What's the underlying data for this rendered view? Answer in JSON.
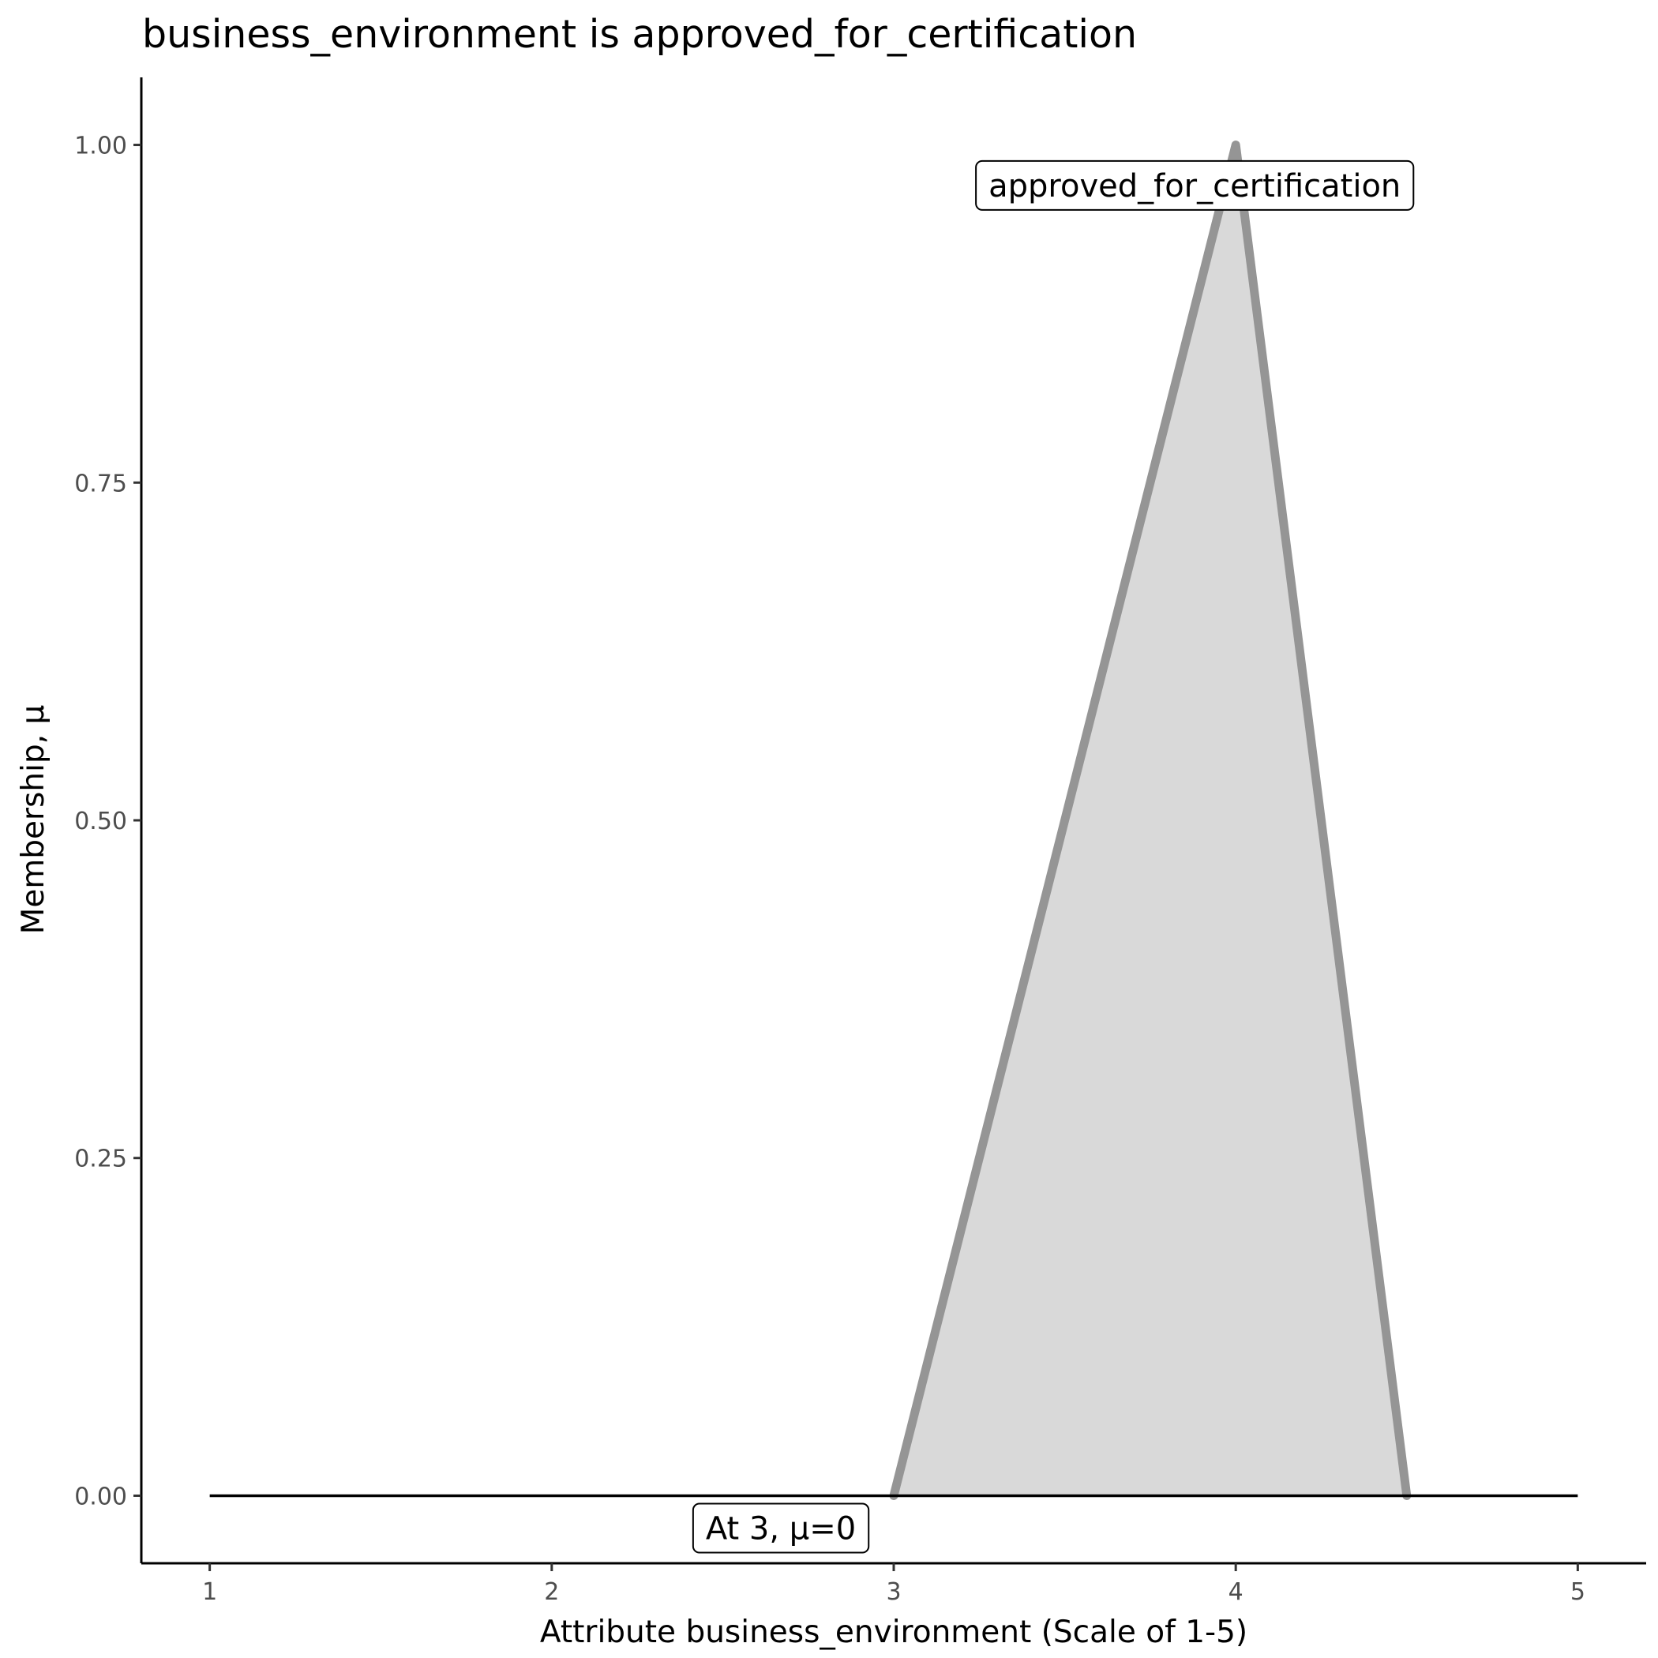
{
  "chart_data": {
    "type": "area",
    "title": "business_environment is approved_for_certification",
    "xlabel": "Attribute business_environment (Scale of 1-5)",
    "ylabel": "Membership, μ",
    "xlim": [
      0.8,
      5.2
    ],
    "ylim": [
      -0.05,
      1.05
    ],
    "x_ticks": [
      1,
      2,
      3,
      4,
      5
    ],
    "x_tick_labels": [
      "1",
      "2",
      "3",
      "4",
      "5"
    ],
    "y_ticks": [
      0,
      0.25,
      0.5,
      0.75,
      1
    ],
    "y_tick_labels": [
      "0.00",
      "0.25",
      "0.50",
      "0.75",
      "1.00"
    ],
    "grid": false,
    "series": [
      {
        "x": [
          3,
          4,
          4.5
        ],
        "y": [
          0,
          1,
          0
        ],
        "fill": "#d9d9d9",
        "stroke": "#959595"
      }
    ],
    "baseline": {
      "x": [
        1,
        5
      ],
      "y": [
        0,
        0
      ],
      "color": "#000000"
    },
    "annotations": [
      {
        "text": "approved_for_certification",
        "x": 3.88,
        "y": 0.97
      },
      {
        "text": "At 3, μ=0",
        "x": 2.67,
        "y": -0.024
      }
    ]
  }
}
